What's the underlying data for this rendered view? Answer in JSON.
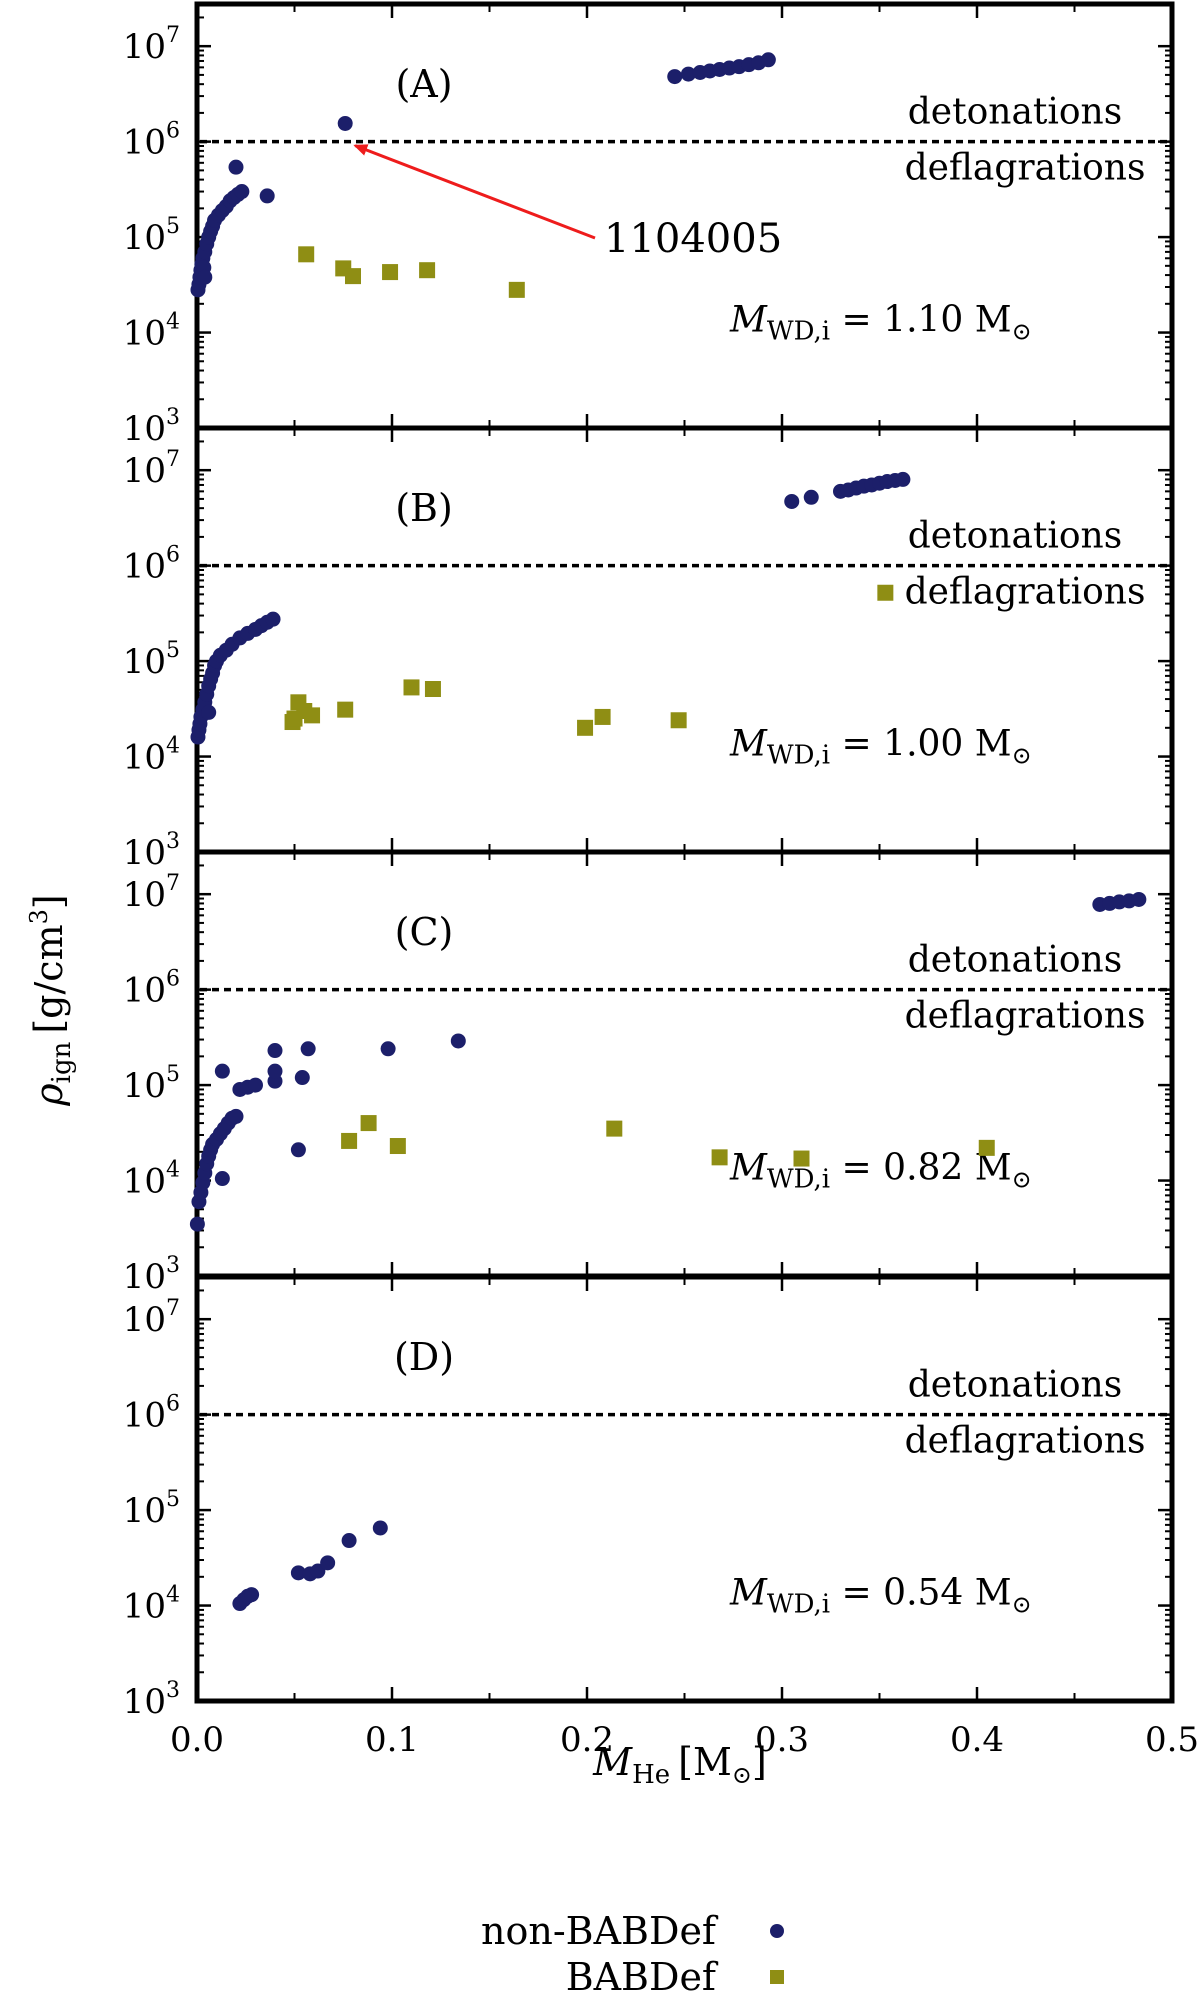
{
  "chart_data": {
    "type": "scatter",
    "xlabel": "M_He [M_sun]",
    "xlabel_main": "M",
    "xlabel_sub": "He",
    "xlabel_unit_open": "[M",
    "xlabel_unit_close": "]",
    "ylabel": "rho_ign [g/cm^3]",
    "ylabel_main": "ρ",
    "ylabel_sub": "ign",
    "ylabel_unit_open": "[g/cm",
    "ylabel_unit_exp": "3",
    "ylabel_unit_close": "]",
    "xlim": [
      0,
      0.5
    ],
    "x_ticks": [
      0.0,
      0.1,
      0.2,
      0.3,
      0.4,
      0.5
    ],
    "x_tick_labels": [
      "0.0",
      "0.1",
      "0.2",
      "0.3",
      "0.4",
      "0.5"
    ],
    "y_scale": "log",
    "y_exp_range": [
      3,
      7.4
    ],
    "y_tick_exps": [
      3,
      4,
      5,
      6,
      7
    ],
    "y_tick_base": "10",
    "y_tick_exp_labels": [
      "3",
      "4",
      "5",
      "6",
      "7"
    ],
    "threshold_value": 1000000,
    "threshold_label_above": "detonations",
    "threshold_label_below": "deflagrations",
    "series_names": [
      "non-BABDef",
      "BABDef"
    ],
    "colors": {
      "non_babdef": "#1c1f6a",
      "babdef": "#8f8e14",
      "arrow": "#ee1c1c"
    },
    "panels": [
      {
        "label": "(A)",
        "mass_prefix": "M",
        "mass_sub": "WD,i",
        "mass_value": " = 1.10 M",
        "annotation": {
          "text": "1104005",
          "x": 0.077,
          "y": 1000000
        },
        "non_babdef": [
          [
            0.0005,
            28000
          ],
          [
            0.001,
            32000
          ],
          [
            0.0015,
            38000
          ],
          [
            0.002,
            45000
          ],
          [
            0.0025,
            52000
          ],
          [
            0.003,
            60000
          ],
          [
            0.0035,
            48000
          ],
          [
            0.004,
            70000
          ],
          [
            0.005,
            85000
          ],
          [
            0.006,
            100000
          ],
          [
            0.007,
            115000
          ],
          [
            0.008,
            130000
          ],
          [
            0.009,
            150000
          ],
          [
            0.011,
            170000
          ],
          [
            0.013,
            190000
          ],
          [
            0.015,
            210000
          ],
          [
            0.017,
            240000
          ],
          [
            0.019,
            260000
          ],
          [
            0.021,
            280000
          ],
          [
            0.023,
            300000
          ],
          [
            0.02,
            540000
          ],
          [
            0.036,
            270000
          ],
          [
            0.004,
            38000
          ],
          [
            0.076,
            1550000
          ],
          [
            0.245,
            4800000
          ],
          [
            0.252,
            5100000
          ],
          [
            0.258,
            5300000
          ],
          [
            0.263,
            5500000
          ],
          [
            0.268,
            5700000
          ],
          [
            0.273,
            5900000
          ],
          [
            0.278,
            6100000
          ],
          [
            0.283,
            6400000
          ],
          [
            0.288,
            6700000
          ],
          [
            0.293,
            7200000
          ]
        ],
        "babdef": [
          [
            0.056,
            66000
          ],
          [
            0.075,
            47000
          ],
          [
            0.08,
            39000
          ],
          [
            0.099,
            43000
          ],
          [
            0.118,
            45000
          ],
          [
            0.164,
            28000
          ]
        ]
      },
      {
        "label": "(B)",
        "mass_prefix": "M",
        "mass_sub": "WD,i",
        "mass_value": " = 1.00 M",
        "non_babdef": [
          [
            0.0005,
            16000
          ],
          [
            0.001,
            19000
          ],
          [
            0.0015,
            22000
          ],
          [
            0.002,
            26000
          ],
          [
            0.003,
            31000
          ],
          [
            0.004,
            37000
          ],
          [
            0.005,
            45000
          ],
          [
            0.006,
            55000
          ],
          [
            0.007,
            65000
          ],
          [
            0.008,
            75000
          ],
          [
            0.009,
            90000
          ],
          [
            0.01,
            100000
          ],
          [
            0.012,
            115000
          ],
          [
            0.015,
            130000
          ],
          [
            0.018,
            150000
          ],
          [
            0.022,
            175000
          ],
          [
            0.026,
            195000
          ],
          [
            0.03,
            215000
          ],
          [
            0.033,
            235000
          ],
          [
            0.036,
            255000
          ],
          [
            0.039,
            275000
          ],
          [
            0.006,
            29000
          ],
          [
            0.305,
            4700000
          ],
          [
            0.315,
            5200000
          ],
          [
            0.33,
            6000000
          ],
          [
            0.334,
            6200000
          ],
          [
            0.338,
            6500000
          ],
          [
            0.342,
            6800000
          ],
          [
            0.346,
            7000000
          ],
          [
            0.35,
            7300000
          ],
          [
            0.354,
            7600000
          ],
          [
            0.358,
            7800000
          ],
          [
            0.362,
            8000000
          ]
        ],
        "babdef": [
          [
            0.049,
            23000
          ],
          [
            0.05,
            25000
          ],
          [
            0.052,
            37000
          ],
          [
            0.055,
            30000
          ],
          [
            0.059,
            27000
          ],
          [
            0.076,
            31000
          ],
          [
            0.11,
            53000
          ],
          [
            0.121,
            51000
          ],
          [
            0.199,
            20000
          ],
          [
            0.208,
            26000
          ],
          [
            0.247,
            24000
          ],
          [
            0.353,
            520000
          ]
        ]
      },
      {
        "label": "(C)",
        "mass_prefix": "M",
        "mass_sub": "WD,i",
        "mass_value": " = 0.82 M",
        "non_babdef": [
          [
            0.0002,
            3500
          ],
          [
            0.001,
            6000
          ],
          [
            0.002,
            7500
          ],
          [
            0.003,
            9500
          ],
          [
            0.004,
            12000
          ],
          [
            0.005,
            15000
          ],
          [
            0.006,
            18000
          ],
          [
            0.007,
            21000
          ],
          [
            0.008,
            24000
          ],
          [
            0.01,
            27000
          ],
          [
            0.012,
            31000
          ],
          [
            0.014,
            35000
          ],
          [
            0.016,
            40000
          ],
          [
            0.018,
            45000
          ],
          [
            0.02,
            47000
          ],
          [
            0.013,
            10500
          ],
          [
            0.013,
            140000
          ],
          [
            0.022,
            90000
          ],
          [
            0.026,
            95000
          ],
          [
            0.03,
            100000
          ],
          [
            0.04,
            110000
          ],
          [
            0.04,
            140000
          ],
          [
            0.04,
            230000
          ],
          [
            0.052,
            21000
          ],
          [
            0.054,
            120000
          ],
          [
            0.057,
            240000
          ],
          [
            0.098,
            240000
          ],
          [
            0.134,
            290000
          ],
          [
            0.463,
            7800000
          ],
          [
            0.468,
            8000000
          ],
          [
            0.473,
            8300000
          ],
          [
            0.478,
            8500000
          ],
          [
            0.483,
            8800000
          ]
        ],
        "babdef": [
          [
            0.078,
            26000
          ],
          [
            0.088,
            40000
          ],
          [
            0.103,
            23000
          ],
          [
            0.214,
            35000
          ],
          [
            0.268,
            17500
          ],
          [
            0.31,
            17000
          ],
          [
            0.405,
            22000
          ]
        ]
      },
      {
        "label": "(D)",
        "mass_prefix": "M",
        "mass_sub": "WD,i",
        "mass_value": " = 0.54 M",
        "non_babdef": [
          [
            0.022,
            10500
          ],
          [
            0.024,
            11500
          ],
          [
            0.026,
            12500
          ],
          [
            0.028,
            13000
          ],
          [
            0.052,
            22000
          ],
          [
            0.058,
            21500
          ],
          [
            0.062,
            23000
          ],
          [
            0.067,
            28000
          ],
          [
            0.078,
            48000
          ],
          [
            0.094,
            65000
          ]
        ],
        "babdef": []
      }
    ]
  }
}
